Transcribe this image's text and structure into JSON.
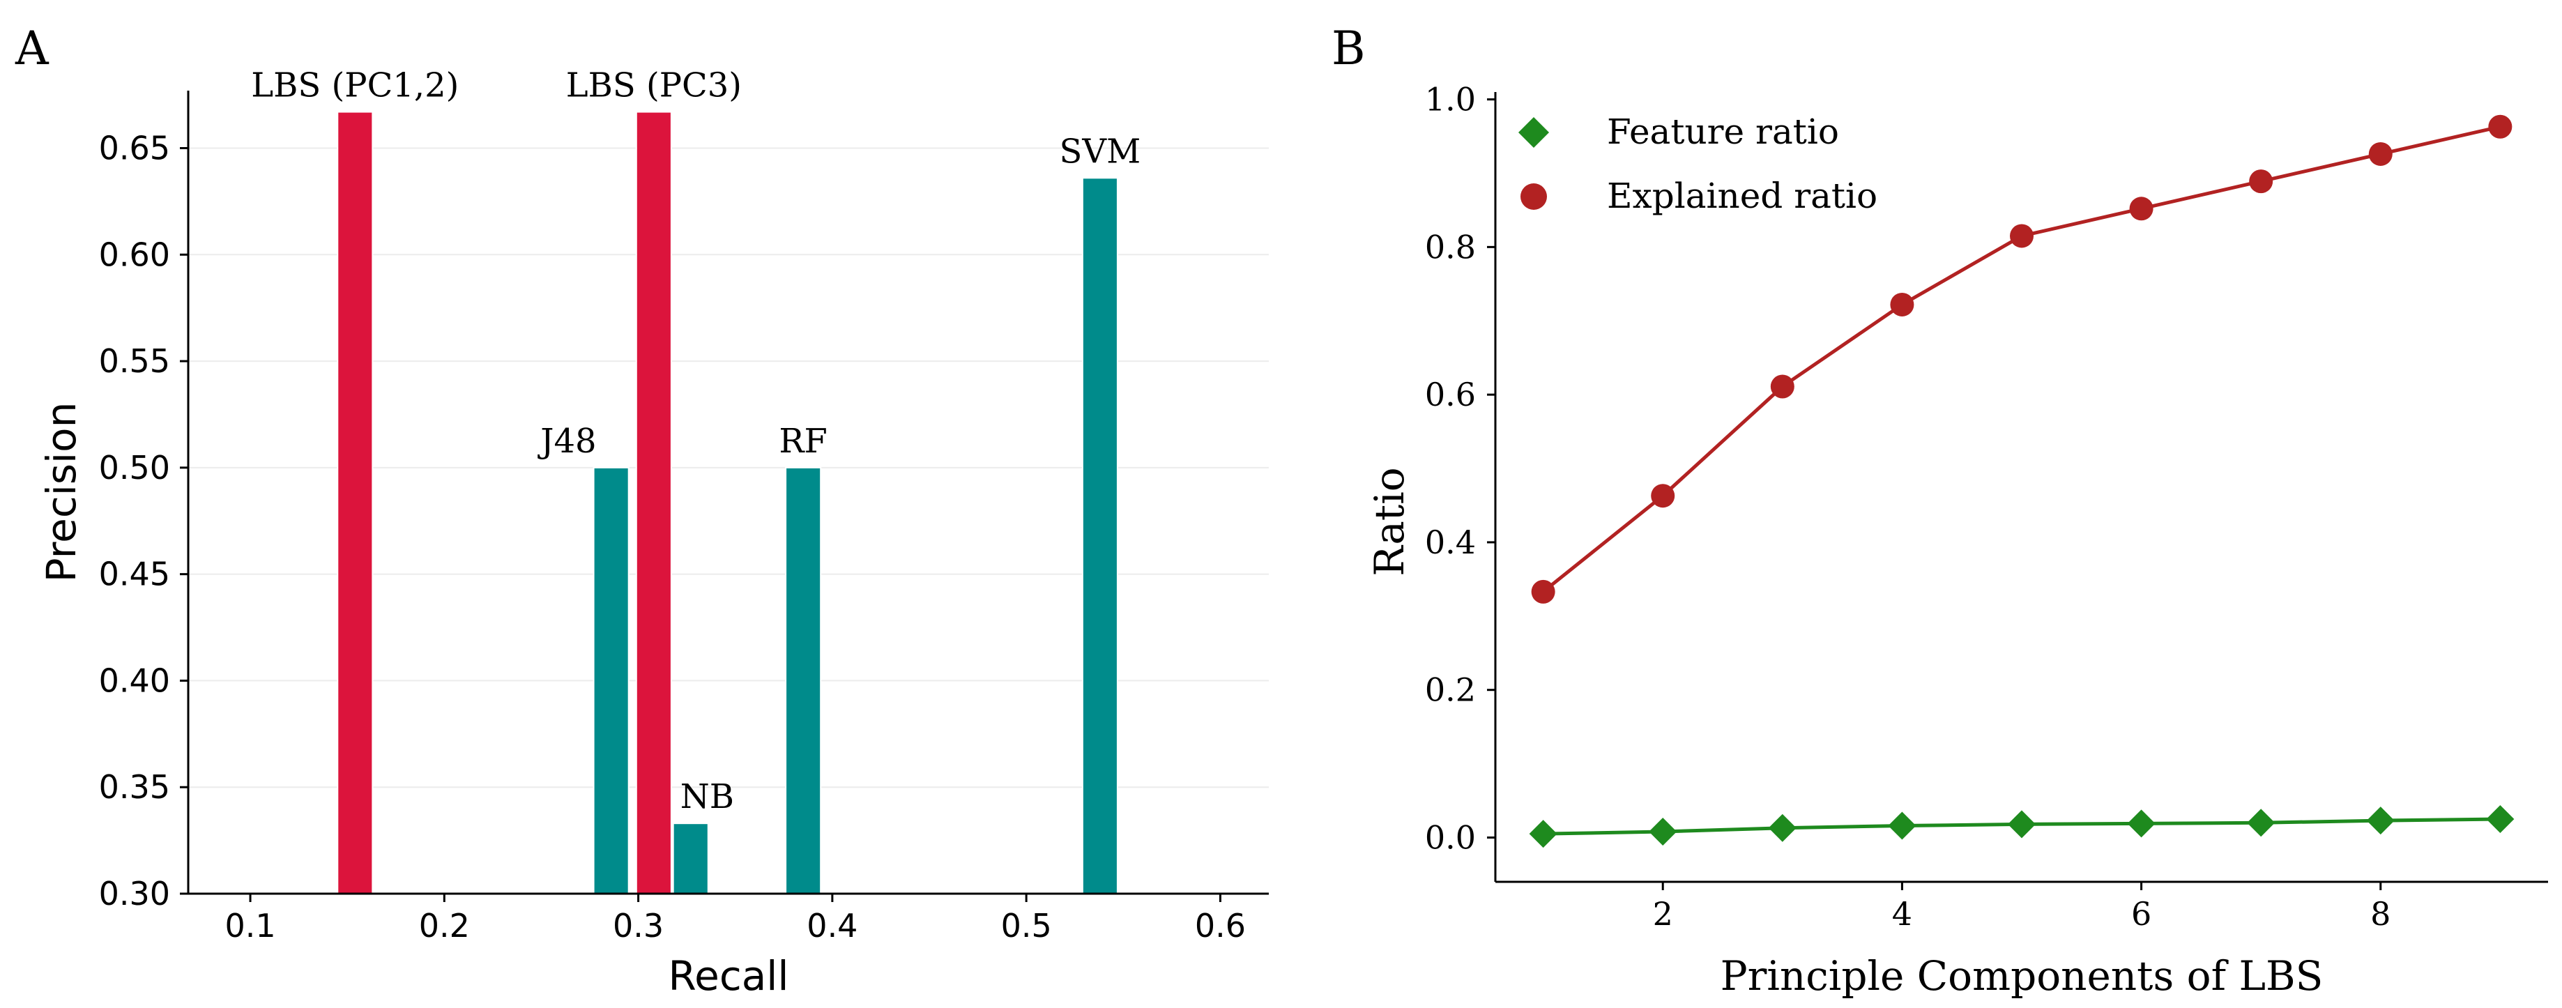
{
  "figure": {
    "panel_a_letter": "A",
    "panel_b_letter": "B"
  },
  "chart_data": [
    {
      "type": "bar",
      "panel": "A",
      "xlabel": "Recall",
      "ylabel": "Precision",
      "xlim": [
        0.068,
        0.625
      ],
      "ylim": [
        0.3,
        0.677
      ],
      "xticks": [
        0.1,
        0.2,
        0.3,
        0.4,
        0.5,
        0.6
      ],
      "xtick_labels": [
        "0.1",
        "0.2",
        "0.3",
        "0.4",
        "0.5",
        "0.6"
      ],
      "yticks": [
        0.3,
        0.35,
        0.4,
        0.45,
        0.5,
        0.55,
        0.6,
        0.65
      ],
      "ytick_labels": [
        "0.30",
        "0.35",
        "0.40",
        "0.45",
        "0.50",
        "0.55",
        "0.60",
        "0.65"
      ],
      "grid": "horizontal",
      "bar_width": 0.018,
      "series_colors": {
        "lbs": "#DC143C",
        "baseline": "#008B8B"
      },
      "bars": [
        {
          "label": "LBS (PC1,2)",
          "recall": 0.154,
          "precision": 0.667,
          "group": "lbs",
          "label_side": "center"
        },
        {
          "label": "J48",
          "recall": 0.286,
          "precision": 0.5,
          "group": "baseline",
          "label_side": "left"
        },
        {
          "label": "LBS (PC3)",
          "recall": 0.308,
          "precision": 0.667,
          "group": "lbs",
          "label_side": "center"
        },
        {
          "label": "NB",
          "recall": 0.327,
          "precision": 0.333,
          "group": "baseline",
          "label_side": "right"
        },
        {
          "label": "RF",
          "recall": 0.385,
          "precision": 0.5,
          "group": "baseline",
          "label_side": "center"
        },
        {
          "label": "SVM",
          "recall": 0.538,
          "precision": 0.636,
          "group": "baseline",
          "label_side": "center"
        }
      ]
    },
    {
      "type": "line",
      "panel": "B",
      "xlabel": "Principle Components of LBS",
      "ylabel": "Ratio",
      "xlim": [
        0.6,
        9.4
      ],
      "ylim": [
        -0.06,
        1.01
      ],
      "xticks": [
        2,
        4,
        6,
        8
      ],
      "xtick_labels": [
        "2",
        "4",
        "6",
        "8"
      ],
      "yticks": [
        0.0,
        0.2,
        0.4,
        0.6,
        0.8,
        1.0
      ],
      "ytick_labels": [
        "0.0",
        "0.2",
        "0.4",
        "0.6",
        "0.8",
        "1.0"
      ],
      "legend_position": "top-left",
      "x": [
        1,
        2,
        3,
        4,
        5,
        6,
        7,
        8,
        9
      ],
      "series": [
        {
          "name": "Feature ratio",
          "marker": "diamond",
          "color": "#1E8A1E",
          "values": [
            0.005,
            0.008,
            0.013,
            0.016,
            0.018,
            0.019,
            0.02,
            0.023,
            0.025
          ]
        },
        {
          "name": "Explained ratio",
          "marker": "circle",
          "color": "#B22222",
          "values": [
            0.333,
            0.463,
            0.611,
            0.722,
            0.815,
            0.852,
            0.889,
            0.926,
            0.963
          ]
        }
      ]
    }
  ]
}
